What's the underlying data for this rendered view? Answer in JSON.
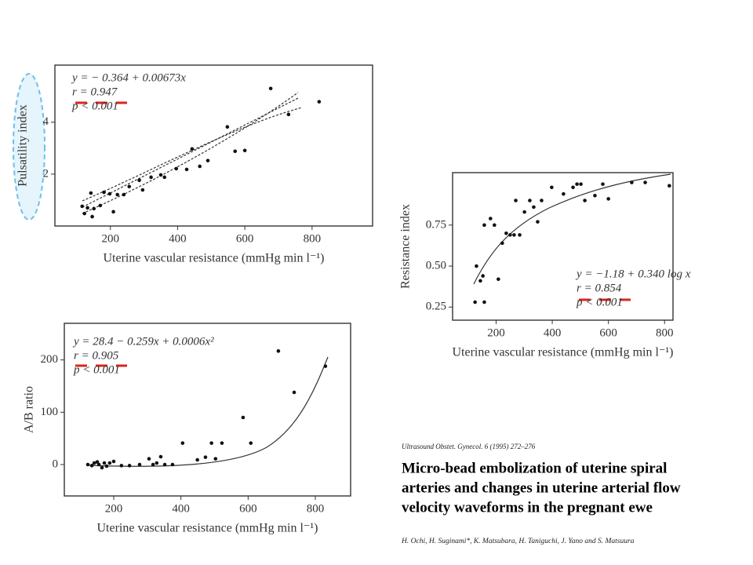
{
  "chart_data": [
    {
      "type": "scatter",
      "x_label": "Uterine vascular resistance (mmHg min l⁻¹)",
      "y_label": "Pulsatility index",
      "annotations": [
        "y = − 0.364 + 0.00673x",
        "r = 0.947",
        "p < 0.001"
      ],
      "x": [
        116,
        123,
        132,
        142,
        146,
        151,
        170,
        181,
        198,
        209,
        221,
        240,
        256,
        286,
        296,
        321,
        350,
        361,
        396,
        427,
        443,
        466,
        490,
        548,
        571,
        600,
        677,
        730,
        821
      ],
      "values": [
        0.76,
        0.48,
        0.7,
        1.27,
        0.36,
        0.67,
        0.79,
        1.3,
        1.24,
        0.55,
        1.21,
        1.21,
        1.52,
        1.76,
        1.39,
        1.88,
        1.97,
        1.88,
        2.21,
        2.18,
        2.97,
        2.3,
        2.52,
        3.82,
        2.88,
        2.91,
        5.3,
        4.3,
        4.79
      ],
      "color": "#111",
      "xlim": [
        35,
        980
      ],
      "xticks": [
        200,
        400,
        600,
        800
      ],
      "ylim": [
        0,
        6.2
      ],
      "yticks": [
        2,
        4
      ]
    },
    {
      "type": "scatter",
      "x_label": "Uterine vascular resistance (mmHg min l⁻¹)",
      "y_label": "Resistance index",
      "annotations": [
        "y = −1.18 + 0.340 log x",
        "r = 0.854",
        "p < 0.001"
      ],
      "x": [
        125,
        130,
        144,
        153,
        158,
        158,
        180,
        194,
        208,
        222,
        236,
        250,
        264,
        270,
        284,
        301,
        320,
        334,
        348,
        362,
        398,
        440,
        474,
        488,
        502,
        516,
        552,
        580,
        600,
        683,
        731,
        817
      ],
      "values": [
        0.28,
        0.5,
        0.41,
        0.44,
        0.75,
        0.28,
        0.79,
        0.75,
        0.42,
        0.64,
        0.7,
        0.69,
        0.69,
        0.9,
        0.69,
        0.83,
        0.9,
        0.86,
        0.77,
        0.9,
        0.98,
        0.94,
        0.98,
        1.0,
        1.0,
        0.9,
        0.93,
        1.0,
        0.91,
        1.01,
        1.01,
        0.99
      ],
      "color": "#111",
      "xlim": [
        45,
        830
      ],
      "xticks": [
        200,
        400,
        600,
        800
      ],
      "ylim": [
        0.17,
        1.07
      ],
      "yticks": [
        0.25,
        {
          "value": 0.5,
          "label": "0.50"
        },
        0.75
      ]
    },
    {
      "type": "scatter",
      "x_label": "Uterine vascular resistance (mmHg min l⁻¹)",
      "y_label": "A/B ratio",
      "annotations": [
        "y = 28.4 − 0.259x + 0.0006x²",
        "r = 0.905",
        "p < 0.001"
      ],
      "x": [
        123,
        135,
        142,
        151,
        156,
        165,
        172,
        179,
        188,
        200,
        223,
        247,
        277,
        305,
        317,
        328,
        340,
        352,
        375,
        405,
        449,
        473,
        491,
        503,
        522,
        585,
        608,
        690,
        737,
        830
      ],
      "values": [
        0,
        -2,
        3,
        5,
        0,
        -6,
        3,
        -3,
        3,
        6,
        -2,
        -2,
        0,
        11,
        0,
        3,
        15,
        0,
        0,
        41,
        9,
        14,
        41,
        11,
        41,
        90,
        41,
        217,
        138,
        188
      ],
      "color": "#111",
      "xlim": [
        53,
        905
      ],
      "xticks": [
        200,
        400,
        600,
        800
      ],
      "ylim": [
        -60,
        270
      ],
      "yticks": [
        0,
        100,
        200
      ]
    }
  ],
  "citation": {
    "journal": "Ultrasound Obstet. Gynecol. 6 (1995) 272–276",
    "title": [
      "Micro-bead embolization of uterine spiral",
      "arteries and changes in uterine arterial flow",
      "velocity waveforms in the pregnant ewe"
    ],
    "authors": "H. Ochi, H. Suginami*, K. Matsubara, H. Taniguchi, J. Yano and S. Matsuura"
  }
}
